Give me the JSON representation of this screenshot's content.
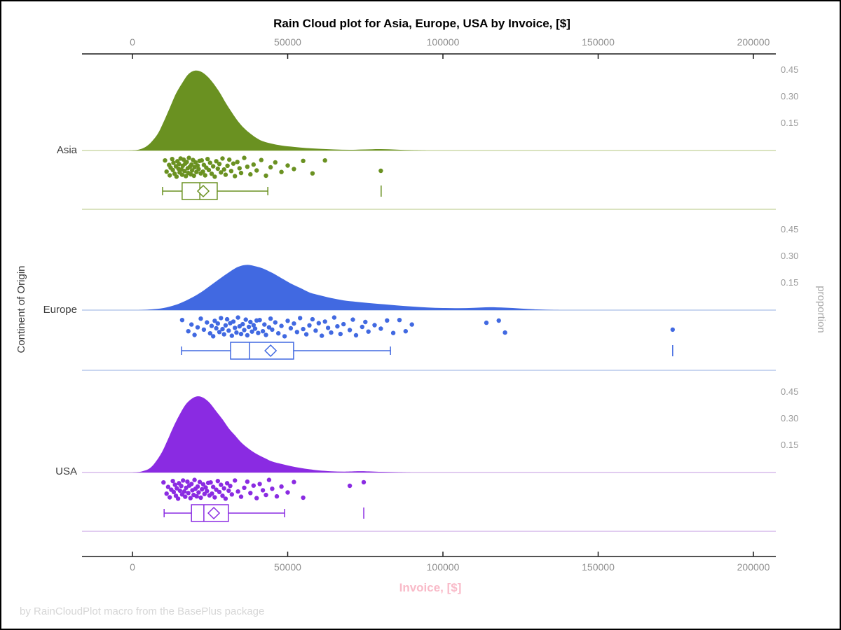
{
  "chart_data": {
    "type": "raincloud",
    "title": "Rain Cloud plot for Asia, Europe, USA by Invoice, [$]",
    "xlabel": "Invoice, [$]",
    "xlabel_color": "#f9bac8",
    "ylabel": "Continent of Origin",
    "y2label": "proportion",
    "footer": "by RainCloudPlot macro from the BasePlus package",
    "xlim": [
      -16000,
      207500
    ],
    "x_ticks": [
      0,
      50000,
      100000,
      150000,
      200000
    ],
    "x_tick_labels": [
      "0",
      "50000",
      "100000",
      "150000",
      "200000"
    ],
    "proportion_ticks": [
      0.45,
      0.3,
      0.15
    ],
    "proportion_tick_labels": [
      "0.45",
      "0.30",
      "0.15"
    ],
    "axis_color": "#1a1a1a",
    "tick_text_color": "#8f8f8f",
    "groups": [
      {
        "name": "Asia",
        "color": "#6a9121",
        "light": "#c3d29a",
        "density": [
          [
            -2000,
            0
          ],
          [
            2000,
            0.005
          ],
          [
            5000,
            0.03
          ],
          [
            8000,
            0.09
          ],
          [
            10000,
            0.16
          ],
          [
            12000,
            0.24
          ],
          [
            14000,
            0.32
          ],
          [
            16000,
            0.38
          ],
          [
            18000,
            0.43
          ],
          [
            20000,
            0.45
          ],
          [
            22000,
            0.445
          ],
          [
            24000,
            0.42
          ],
          [
            26000,
            0.38
          ],
          [
            28000,
            0.33
          ],
          [
            30000,
            0.27
          ],
          [
            32000,
            0.215
          ],
          [
            34000,
            0.165
          ],
          [
            36000,
            0.125
          ],
          [
            38000,
            0.095
          ],
          [
            40000,
            0.07
          ],
          [
            42000,
            0.052
          ],
          [
            45000,
            0.038
          ],
          [
            48000,
            0.028
          ],
          [
            52000,
            0.02
          ],
          [
            56000,
            0.014
          ],
          [
            60000,
            0.01
          ],
          [
            65000,
            0.006
          ],
          [
            70000,
            0.004
          ],
          [
            75000,
            0.006
          ],
          [
            80000,
            0.008
          ],
          [
            85000,
            0.005
          ],
          [
            90000,
            0.002
          ],
          [
            95000,
            0
          ]
        ],
        "box": {
          "whisker_low": 9700,
          "q1": 16000,
          "median": 21700,
          "q3": 27300,
          "whisker_high": 43600,
          "mean": 22800,
          "outliers": [
            80100
          ]
        },
        "points_x": [
          10500,
          11000,
          11800,
          12000,
          12300,
          12800,
          13000,
          13200,
          13600,
          14000,
          14200,
          14500,
          14800,
          15000,
          15200,
          15500,
          15800,
          16000,
          16200,
          16500,
          16800,
          17000,
          17200,
          17500,
          17800,
          18000,
          18200,
          18500,
          18800,
          19000,
          19200,
          19500,
          19800,
          20000,
          20300,
          20600,
          21000,
          21300,
          21600,
          22000,
          22300,
          22700,
          23000,
          23400,
          23800,
          24200,
          24600,
          25000,
          25500,
          26000,
          26500,
          27000,
          27500,
          28000,
          28500,
          29000,
          29500,
          30000,
          30600,
          31200,
          31800,
          32500,
          33000,
          33800,
          34500,
          35000,
          36000,
          37000,
          38000,
          39000,
          40000,
          41500,
          43000,
          44500,
          46000,
          48000,
          50000,
          52000,
          55000,
          58000,
          62000,
          80000
        ],
        "points_jitter": [
          0.15,
          0.72,
          0.38,
          0.91,
          0.52,
          0.08,
          0.64,
          0.27,
          0.83,
          0.45,
          0.98,
          0.19,
          0.57,
          0.33,
          0.76,
          0.05,
          0.61,
          0.88,
          0.42,
          0.11,
          0.69,
          0.31,
          0.95,
          0.23,
          0.55,
          0.79,
          0.02,
          0.47,
          0.86,
          0.36,
          0.66,
          0.13,
          0.93,
          0.5,
          0.25,
          0.74,
          0.41,
          0.59,
          0.17,
          0.81,
          0.15,
          0.72,
          0.38,
          0.91,
          0.52,
          0.08,
          0.64,
          0.27,
          0.83,
          0.45,
          0.98,
          0.19,
          0.57,
          0.33,
          0.76,
          0.05,
          0.61,
          0.88,
          0.42,
          0.11,
          0.69,
          0.31,
          0.95,
          0.23,
          0.55,
          0.79,
          0.02,
          0.47,
          0.86,
          0.36,
          0.66,
          0.13,
          0.93,
          0.5,
          0.25,
          0.74,
          0.41,
          0.59,
          0.17,
          0.81,
          0.15,
          0.68
        ]
      },
      {
        "name": "Europe",
        "color": "#4169e1",
        "light": "#a9bde8",
        "density": [
          [
            2000,
            0
          ],
          [
            6000,
            0.004
          ],
          [
            10000,
            0.012
          ],
          [
            14000,
            0.03
          ],
          [
            18000,
            0.06
          ],
          [
            22000,
            0.1
          ],
          [
            26000,
            0.15
          ],
          [
            30000,
            0.2
          ],
          [
            33000,
            0.235
          ],
          [
            35000,
            0.25
          ],
          [
            37000,
            0.255
          ],
          [
            39000,
            0.25
          ],
          [
            42000,
            0.235
          ],
          [
            45000,
            0.21
          ],
          [
            48000,
            0.18
          ],
          [
            51000,
            0.15
          ],
          [
            54000,
            0.125
          ],
          [
            57000,
            0.1
          ],
          [
            60000,
            0.085
          ],
          [
            64000,
            0.068
          ],
          [
            68000,
            0.055
          ],
          [
            72000,
            0.047
          ],
          [
            76000,
            0.04
          ],
          [
            80000,
            0.034
          ],
          [
            85000,
            0.027
          ],
          [
            90000,
            0.02
          ],
          [
            95000,
            0.015
          ],
          [
            100000,
            0.012
          ],
          [
            105000,
            0.011
          ],
          [
            110000,
            0.013
          ],
          [
            115000,
            0.016
          ],
          [
            120000,
            0.014
          ],
          [
            125000,
            0.009
          ],
          [
            130000,
            0.004
          ],
          [
            135000,
            0.001
          ],
          [
            140000,
            0
          ]
        ],
        "box": {
          "whisker_low": 15800,
          "q1": 31600,
          "median": 37700,
          "q3": 51900,
          "whisker_high": 83100,
          "mean": 44500,
          "outliers": [
            174000
          ]
        },
        "points_x": [
          16000,
          18000,
          19000,
          20000,
          21000,
          22000,
          23000,
          24000,
          25000,
          25500,
          26000,
          26500,
          27000,
          27500,
          28000,
          28500,
          29000,
          29500,
          30000,
          30500,
          31000,
          31500,
          32000,
          32500,
          33000,
          33500,
          34000,
          34500,
          35000,
          35500,
          36000,
          36500,
          37000,
          37500,
          38000,
          38500,
          39000,
          39500,
          40000,
          40500,
          41000,
          42000,
          42500,
          43000,
          44000,
          44500,
          45000,
          46000,
          47000,
          48000,
          49000,
          50000,
          51000,
          52000,
          53000,
          54000,
          55000,
          56000,
          57000,
          58000,
          59000,
          60000,
          61000,
          62000,
          63000,
          64000,
          65000,
          66000,
          67000,
          68000,
          70000,
          71000,
          72000,
          74000,
          75000,
          76000,
          78000,
          80000,
          82000,
          84000,
          86000,
          88000,
          90000,
          114000,
          118000,
          120000,
          174000
        ],
        "points_jitter": [
          0.15,
          0.72,
          0.38,
          0.91,
          0.52,
          0.08,
          0.64,
          0.27,
          0.83,
          0.45,
          0.98,
          0.19,
          0.57,
          0.33,
          0.76,
          0.05,
          0.61,
          0.88,
          0.42,
          0.11,
          0.69,
          0.31,
          0.95,
          0.23,
          0.55,
          0.79,
          0.02,
          0.47,
          0.86,
          0.36,
          0.66,
          0.13,
          0.93,
          0.5,
          0.25,
          0.74,
          0.41,
          0.59,
          0.17,
          0.81,
          0.15,
          0.72,
          0.38,
          0.91,
          0.52,
          0.08,
          0.64,
          0.27,
          0.83,
          0.45,
          0.98,
          0.19,
          0.57,
          0.33,
          0.76,
          0.05,
          0.61,
          0.88,
          0.42,
          0.11,
          0.69,
          0.31,
          0.95,
          0.23,
          0.55,
          0.79,
          0.02,
          0.47,
          0.86,
          0.36,
          0.66,
          0.13,
          0.93,
          0.5,
          0.25,
          0.74,
          0.41,
          0.59,
          0.17,
          0.81,
          0.15,
          0.72,
          0.38,
          0.29,
          0.18,
          0.79,
          0.64
        ]
      },
      {
        "name": "USA",
        "color": "#8a2be2",
        "light": "#cfaee8",
        "density": [
          [
            0,
            0
          ],
          [
            3000,
            0.006
          ],
          [
            6000,
            0.03
          ],
          [
            9000,
            0.1
          ],
          [
            11000,
            0.17
          ],
          [
            13000,
            0.25
          ],
          [
            15000,
            0.32
          ],
          [
            17000,
            0.38
          ],
          [
            19000,
            0.415
          ],
          [
            21000,
            0.43
          ],
          [
            23000,
            0.42
          ],
          [
            25000,
            0.39
          ],
          [
            27000,
            0.345
          ],
          [
            29000,
            0.3
          ],
          [
            31000,
            0.25
          ],
          [
            33000,
            0.21
          ],
          [
            35000,
            0.17
          ],
          [
            37000,
            0.14
          ],
          [
            39000,
            0.115
          ],
          [
            41000,
            0.095
          ],
          [
            43000,
            0.078
          ],
          [
            45000,
            0.062
          ],
          [
            48000,
            0.048
          ],
          [
            51000,
            0.036
          ],
          [
            54000,
            0.026
          ],
          [
            57000,
            0.018
          ],
          [
            60000,
            0.012
          ],
          [
            64000,
            0.007
          ],
          [
            68000,
            0.005
          ],
          [
            72000,
            0.007
          ],
          [
            75000,
            0.007
          ],
          [
            80000,
            0.004
          ],
          [
            85000,
            0.002
          ],
          [
            90000,
            0
          ]
        ],
        "box": {
          "whisker_low": 10200,
          "q1": 19000,
          "median": 23000,
          "q3": 30900,
          "whisker_high": 49000,
          "mean": 26200,
          "outliers": [
            74500
          ]
        },
        "points_x": [
          10000,
          11000,
          11500,
          12000,
          12500,
          13000,
          13300,
          13700,
          14000,
          14300,
          14700,
          15000,
          15300,
          15700,
          16000,
          16300,
          16700,
          17000,
          17300,
          17700,
          18000,
          18300,
          18700,
          19000,
          19300,
          19700,
          20000,
          20300,
          20700,
          21000,
          21300,
          21700,
          22000,
          22400,
          22800,
          23200,
          23600,
          24000,
          24400,
          24800,
          25200,
          25600,
          26000,
          26500,
          27000,
          27500,
          28000,
          28500,
          29000,
          29500,
          30000,
          30500,
          31000,
          31500,
          32000,
          33000,
          34000,
          35000,
          36000,
          37000,
          38000,
          39000,
          40000,
          41000,
          42000,
          43000,
          44000,
          45000,
          46500,
          48000,
          50000,
          52000,
          55000,
          70000,
          74500
        ],
        "points_jitter": [
          0.15,
          0.72,
          0.38,
          0.91,
          0.52,
          0.08,
          0.64,
          0.27,
          0.83,
          0.45,
          0.98,
          0.19,
          0.57,
          0.33,
          0.76,
          0.05,
          0.61,
          0.88,
          0.42,
          0.11,
          0.69,
          0.31,
          0.95,
          0.23,
          0.55,
          0.79,
          0.02,
          0.47,
          0.86,
          0.36,
          0.66,
          0.13,
          0.93,
          0.5,
          0.25,
          0.74,
          0.41,
          0.59,
          0.17,
          0.81,
          0.15,
          0.72,
          0.38,
          0.91,
          0.52,
          0.08,
          0.64,
          0.27,
          0.83,
          0.45,
          0.98,
          0.19,
          0.57,
          0.33,
          0.76,
          0.05,
          0.61,
          0.88,
          0.42,
          0.11,
          0.69,
          0.31,
          0.95,
          0.23,
          0.55,
          0.79,
          0.02,
          0.47,
          0.86,
          0.36,
          0.66,
          0.13,
          0.93,
          0.32,
          0.14
        ]
      }
    ]
  }
}
